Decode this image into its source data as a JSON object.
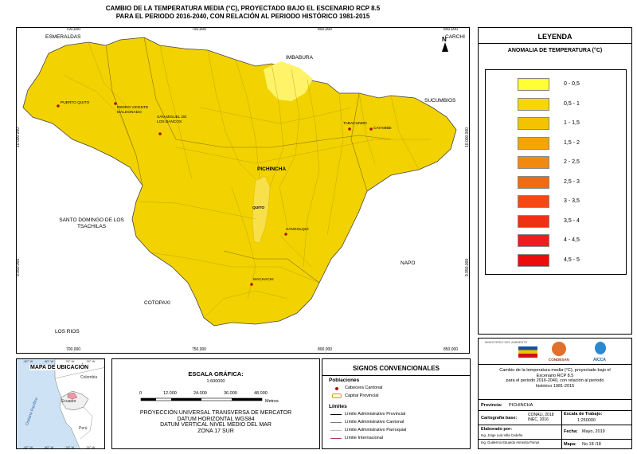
{
  "title": {
    "line1": "CAMBIO DE LA TEMPERATURA MEDIA (°C),  PROYECTADO BAJO EL ESCENARIO RCP 8.5",
    "line2": "PARA EL PERIODO 2016-2040, CON RELACIÓN AL PERIODO HISTÓRICO 1981-2015"
  },
  "map": {
    "x_ticks": [
      "700.000",
      "750.000",
      "800.000",
      "850.000"
    ],
    "y_ticks": [
      "10.000.000",
      "9.950.000"
    ],
    "neighbors": {
      "esmeraldas": "ESMERALDAS",
      "carchi": "CARCHI",
      "imbabura": "IMBABURA",
      "sucumbios": "SUCUMBIOS",
      "santo_domingo": "SANTO DOMINGO DE LOS TSACHILAS",
      "napo": "NAPO",
      "cotopaxi": "COTOPAXI",
      "los_rios": "LOS RIOS"
    },
    "province": "PICHINCHA",
    "north": "N",
    "towns": {
      "puerto_quito": "PUERTO QUITO",
      "pvm": "PEDRO VICENTE MALDONADO",
      "smb": "SAN MIGUEL DE LOS BANCOS",
      "tabacundo": "TABACUNDO",
      "cayambe": "CAYAMBE",
      "quito": "QUITO",
      "sangolqui": "SANGOLQUI",
      "machachi": "MACHACHI"
    },
    "fill_main": "#f2d200",
    "fill_low": "#fff36a"
  },
  "legend": {
    "title": "LEYENDA",
    "subtitle": "ANOMALIA DE TEMPERATURA (°C)",
    "classes": [
      {
        "label": "0 - 0,5",
        "color": "#ffff33"
      },
      {
        "label": "0,5 - 1",
        "color": "#f5d800"
      },
      {
        "label": "1 - 1,5",
        "color": "#f4c300"
      },
      {
        "label": "1,5 - 2",
        "color": "#f3a600"
      },
      {
        "label": "2 - 2,5",
        "color": "#f38a10"
      },
      {
        "label": "2,5 - 3",
        "color": "#f36a10"
      },
      {
        "label": "3 - 3,5",
        "color": "#f24a12"
      },
      {
        "label": "3,5 - 4",
        "color": "#f03015"
      },
      {
        "label": "4 - 4,5",
        "color": "#ee1c1c"
      },
      {
        "label": "4,5 - 5",
        "color": "#ec0c0c"
      }
    ]
  },
  "ubicacion": {
    "title": "MAPA DE UBICACIÓN",
    "colombia": "Colombia",
    "ecuador": "Ecuador",
    "peru": "Perú",
    "ocean": "Océano Pacífico",
    "ticks_top": [
      "-82° W",
      "-80° W",
      "-78° W",
      "-76° W"
    ],
    "ticks_bottom": [
      "-82° W",
      "-80° W",
      "-78° W",
      "-76° W"
    ]
  },
  "escala": {
    "title": "ESCALA GRÁFICA:",
    "ratio": "1:600000",
    "numbers": [
      "0",
      "12.000",
      "24.000",
      "36.000",
      "48.000"
    ],
    "units": "Metros",
    "projection": [
      "PROYECCIÓN UNIVERSAL TRANSVERSA DE MERCATOR",
      "DATUM HORIZONTAL WGS84",
      "DATUM VERTICAL NIVEL MEDIO DEL MAR",
      "ZONA 17 SUR"
    ]
  },
  "signos": {
    "title": "SIGNOS CONVENCIONALES",
    "poblaciones": "Poblaciones",
    "cabecera": "Cabecera Cantonal",
    "capital": "Capital Provincial",
    "limites": "Límites",
    "provincial": "Límite Administrativo Provincial",
    "cantonal": "Límite Administrativo Cantonal",
    "parroquial": "Límite Administrativo Parroquial",
    "internacional": "Límite Internacional"
  },
  "info": {
    "logo_ministerio": "MINISTERIO DEL AMBIENTE",
    "logo_condesan": "CONDESAN",
    "logo_aicca": "AICCA",
    "desc": [
      "Cambio de la temperatura media (°C),  proyectado bajo el",
      "Escenario RCP 8.5",
      "para el periodo 2016-2040, con relación al periodo",
      "histórico 1981-2015"
    ],
    "provincia_label": "Provincia:",
    "provincia_value": "PICHINCHA",
    "cartografia_label": "Cartografía base:",
    "cartografia_value": [
      "CONALI, 2018",
      "INEC, 2016"
    ],
    "escala_label": "Escala de Trabajo:",
    "escala_value": "1:250000",
    "elaborado_label": "Elaborado por:",
    "elaborado_value": [
      "Ing. Jorge Luis Villa Cedeño",
      "Ing. Guillermo Eduardo Armenta Porras"
    ],
    "fecha_label": "Fecha:",
    "fecha_value": "Mayo, 2019",
    "mapa_label": "Mapa:",
    "mapa_value": "No 18 /18"
  }
}
